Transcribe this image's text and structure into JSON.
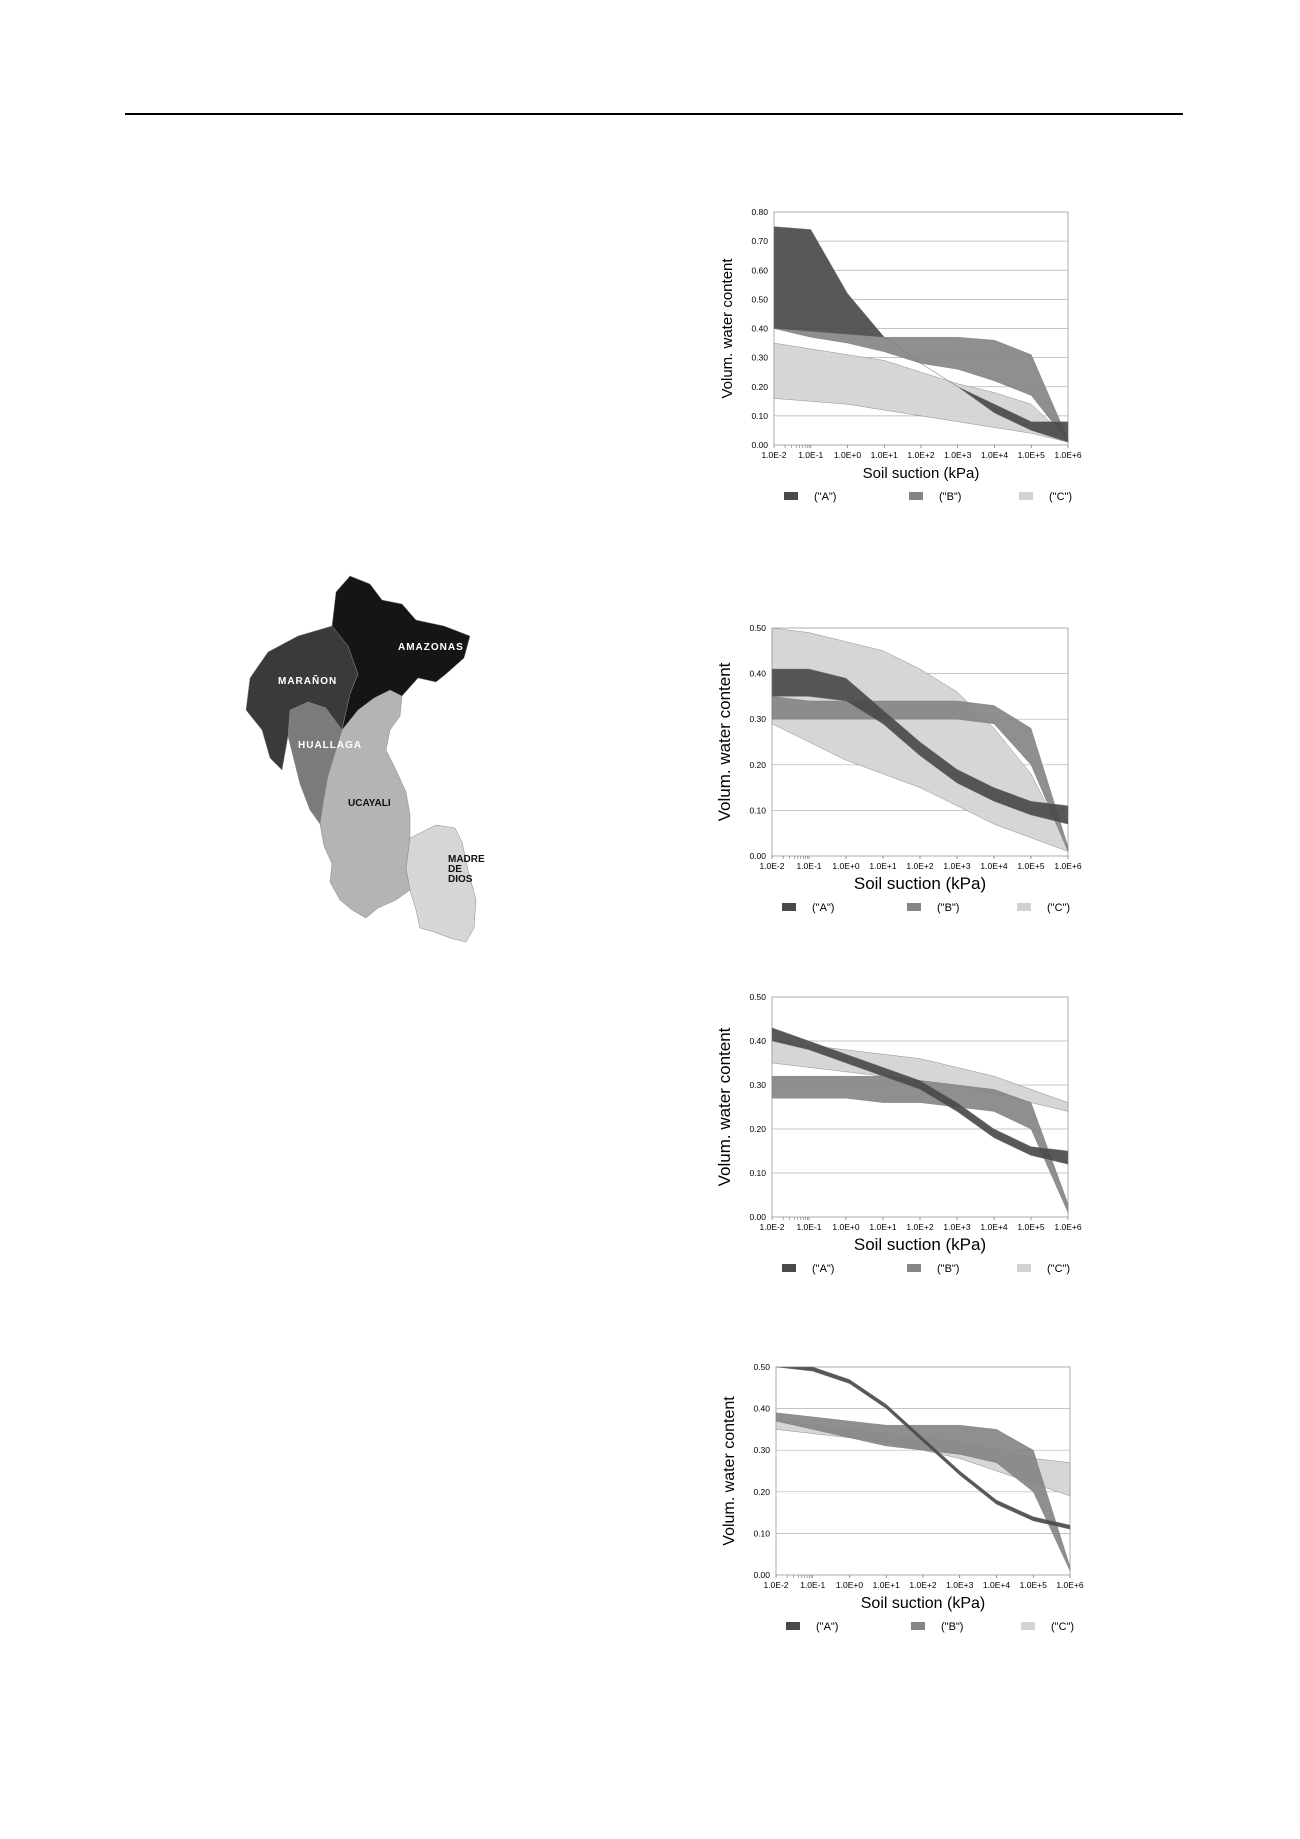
{
  "map": {
    "regions": [
      {
        "name": "AMAZONAS",
        "color": "#151515"
      },
      {
        "name": "MARAÑON",
        "color": "#3a3a3a"
      },
      {
        "name": "HUALLAGA",
        "color": "#7b7b7b"
      },
      {
        "name": "UCAYALI",
        "color": "#b4b4b4"
      },
      {
        "name": "MADRE DE DIOS",
        "color": "#d6d6d6"
      }
    ]
  },
  "legend_names": [
    "(\"A\")",
    "(\"B\")",
    "(\"C\")"
  ],
  "chart_data": [
    {
      "type": "area",
      "xscale": "log",
      "xlabel": "Soil suction (kPa)",
      "ylabel": "Volum. water content",
      "ylim": [
        0,
        0.8
      ],
      "yticks": [
        "0.00",
        "0.10",
        "0.20",
        "0.30",
        "0.40",
        "0.50",
        "0.60",
        "0.70",
        "0.80"
      ],
      "xticks": [
        "1.0E-2",
        "1.0E-1",
        "1.0E+0",
        "1.0E+1",
        "1.0E+2",
        "1.0E+3",
        "1.0E+4",
        "1.0E+5",
        "1.0E+6"
      ],
      "grid": true,
      "legend": "bottom",
      "x": [
        0.01,
        0.1,
        1,
        10,
        100,
        1000,
        10000,
        100000,
        1000000
      ],
      "series": [
        {
          "name": "(\"A\")",
          "color": "#4a4a4a",
          "upper": [
            0.75,
            0.74,
            0.52,
            0.37,
            0.28,
            0.2,
            0.14,
            0.08,
            0.08
          ],
          "lower": [
            0.4,
            0.39,
            0.38,
            0.37,
            0.28,
            0.2,
            0.11,
            0.05,
            0.01
          ]
        },
        {
          "name": "(\"B\")",
          "color": "#858585",
          "upper": [
            0.4,
            0.39,
            0.38,
            0.37,
            0.37,
            0.37,
            0.36,
            0.31,
            0.02
          ],
          "lower": [
            0.4,
            0.37,
            0.35,
            0.32,
            0.28,
            0.26,
            0.22,
            0.17,
            0.01
          ]
        },
        {
          "name": "(\"C\")",
          "color": "#d2d2d2",
          "upper": [
            0.35,
            0.33,
            0.31,
            0.29,
            0.25,
            0.21,
            0.18,
            0.14,
            0.02
          ],
          "lower": [
            0.16,
            0.15,
            0.14,
            0.12,
            0.1,
            0.08,
            0.06,
            0.04,
            0.01
          ]
        }
      ]
    },
    {
      "type": "area",
      "xscale": "log",
      "xlabel": "Soil suction (kPa)",
      "ylabel": "Volum. water content",
      "ylim": [
        0,
        0.5
      ],
      "yticks": [
        "0.00",
        "0.10",
        "0.20",
        "0.30",
        "0.40",
        "0.50"
      ],
      "xticks": [
        "1.0E-2",
        "1.0E-1",
        "1.0E+0",
        "1.0E+1",
        "1.0E+2",
        "1.0E+3",
        "1.0E+4",
        "1.0E+5",
        "1.0E+6"
      ],
      "grid": true,
      "legend": "bottom",
      "x": [
        0.01,
        0.1,
        1,
        10,
        100,
        1000,
        10000,
        100000,
        1000000
      ],
      "series": [
        {
          "name": "(\"A\")",
          "color": "#4a4a4a",
          "upper": [
            0.41,
            0.41,
            0.39,
            0.32,
            0.25,
            0.19,
            0.15,
            0.12,
            0.11
          ],
          "lower": [
            0.35,
            0.35,
            0.34,
            0.29,
            0.22,
            0.16,
            0.12,
            0.09,
            0.07
          ]
        },
        {
          "name": "(\"B\")",
          "color": "#858585",
          "upper": [
            0.35,
            0.34,
            0.34,
            0.34,
            0.34,
            0.34,
            0.33,
            0.28,
            0.02
          ],
          "lower": [
            0.3,
            0.3,
            0.3,
            0.3,
            0.3,
            0.3,
            0.29,
            0.2,
            0.01
          ]
        },
        {
          "name": "(\"C\")",
          "color": "#d2d2d2",
          "upper": [
            0.5,
            0.49,
            0.47,
            0.45,
            0.41,
            0.36,
            0.28,
            0.18,
            0.02
          ],
          "lower": [
            0.29,
            0.25,
            0.21,
            0.18,
            0.15,
            0.11,
            0.07,
            0.04,
            0.01
          ]
        }
      ]
    },
    {
      "type": "area",
      "xscale": "log",
      "xlabel": "Soil suction (kPa)",
      "ylabel": "Volum. water content",
      "ylim": [
        0,
        0.5
      ],
      "yticks": [
        "0.00",
        "0.10",
        "0.20",
        "0.30",
        "0.40",
        "0.50"
      ],
      "xticks": [
        "1.0E-2",
        "1.0E-1",
        "1.0E+0",
        "1.0E+1",
        "1.0E+2",
        "1.0E+3",
        "1.0E+4",
        "1.0E+5",
        "1.0E+6"
      ],
      "grid": true,
      "legend": "bottom",
      "x": [
        0.01,
        0.1,
        1,
        10,
        100,
        1000,
        10000,
        100000,
        1000000
      ],
      "series": [
        {
          "name": "(\"A\")",
          "color": "#4a4a4a",
          "upper": [
            0.43,
            0.4,
            0.37,
            0.34,
            0.31,
            0.26,
            0.2,
            0.16,
            0.15
          ],
          "lower": [
            0.4,
            0.38,
            0.35,
            0.32,
            0.29,
            0.24,
            0.18,
            0.14,
            0.12
          ]
        },
        {
          "name": "(\"B\")",
          "color": "#858585",
          "upper": [
            0.32,
            0.32,
            0.32,
            0.32,
            0.31,
            0.3,
            0.29,
            0.26,
            0.03
          ],
          "lower": [
            0.27,
            0.27,
            0.27,
            0.26,
            0.26,
            0.25,
            0.24,
            0.2,
            0.01
          ]
        },
        {
          "name": "(\"C\")",
          "color": "#d2d2d2",
          "upper": [
            0.4,
            0.39,
            0.38,
            0.37,
            0.36,
            0.34,
            0.32,
            0.29,
            0.26
          ],
          "lower": [
            0.35,
            0.34,
            0.33,
            0.32,
            0.31,
            0.3,
            0.28,
            0.26,
            0.24
          ]
        }
      ]
    },
    {
      "type": "area",
      "xscale": "log",
      "xlabel": "Soil suction (kPa)",
      "ylabel": "Volum. water content",
      "ylim": [
        0,
        0.5
      ],
      "yticks": [
        "0.00",
        "0.10",
        "0.20",
        "0.30",
        "0.40",
        "0.50"
      ],
      "xticks": [
        "1.0E-2",
        "1.0E-1",
        "1.0E+0",
        "1.0E+1",
        "1.0E+2",
        "1.0E+3",
        "1.0E+4",
        "1.0E+5",
        "1.0E+6"
      ],
      "grid": true,
      "legend": "bottom",
      "x": [
        0.01,
        0.1,
        1,
        10,
        100,
        1000,
        10000,
        100000,
        1000000
      ],
      "series": [
        {
          "name": "(\"A\")",
          "color": "#4a4a4a",
          "upper": [
            0.5,
            0.5,
            0.47,
            0.41,
            0.33,
            0.25,
            0.18,
            0.14,
            0.12
          ],
          "lower": [
            0.5,
            0.49,
            0.46,
            0.4,
            0.32,
            0.24,
            0.17,
            0.13,
            0.11
          ]
        },
        {
          "name": "(\"B\")",
          "color": "#858585",
          "upper": [
            0.39,
            0.38,
            0.37,
            0.36,
            0.36,
            0.36,
            0.35,
            0.3,
            0.02
          ],
          "lower": [
            0.37,
            0.35,
            0.33,
            0.31,
            0.3,
            0.29,
            0.27,
            0.2,
            0.01
          ]
        },
        {
          "name": "(\"C\")",
          "color": "#d2d2d2",
          "upper": [
            0.37,
            0.36,
            0.35,
            0.34,
            0.33,
            0.32,
            0.3,
            0.28,
            0.27
          ],
          "lower": [
            0.35,
            0.34,
            0.33,
            0.32,
            0.3,
            0.28,
            0.25,
            0.22,
            0.19
          ]
        }
      ]
    }
  ]
}
